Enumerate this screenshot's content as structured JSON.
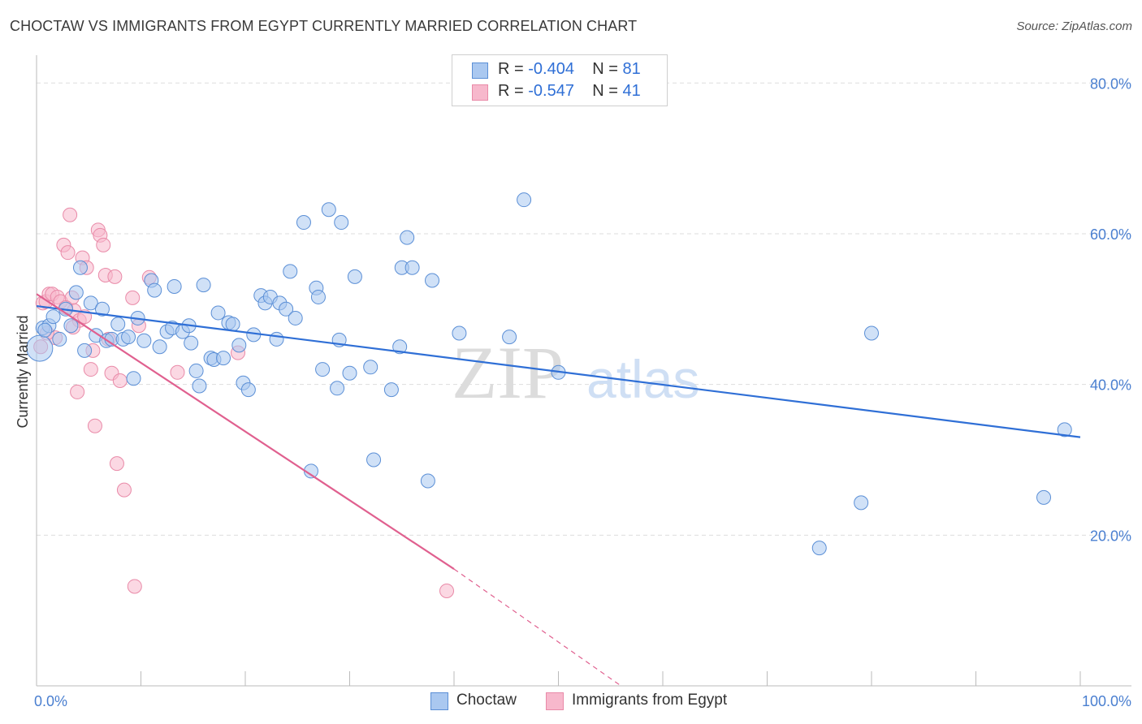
{
  "title": "CHOCTAW VS IMMIGRANTS FROM EGYPT CURRENTLY MARRIED CORRELATION CHART",
  "source": "Source: ZipAtlas.com",
  "watermark": {
    "zip": "ZIP",
    "atlas": "atlas"
  },
  "colors": {
    "choctaw_fill": "#aac8f0",
    "choctaw_stroke": "#5b8fd6",
    "choctaw_line": "#2f6fd6",
    "egypt_fill": "#f7b8cc",
    "egypt_stroke": "#e98aa8",
    "egypt_line": "#e0608f",
    "axis_text": "#4a7fd0",
    "grid": "#dddddd"
  },
  "legend": {
    "rows": [
      {
        "r_label": "R = ",
        "r_value": "-0.404",
        "n_label": "N = ",
        "n_value": "81"
      },
      {
        "r_label": "R = ",
        "r_value": "-0.547",
        "n_label": "N = ",
        "n_value": "41"
      }
    ]
  },
  "chart_data": {
    "type": "scatter",
    "title": "CHOCTAW VS IMMIGRANTS FROM EGYPT CURRENTLY MARRIED CORRELATION CHART",
    "xlabel": "",
    "ylabel": "Currently Married",
    "xlim": [
      0,
      100
    ],
    "ylim": [
      0,
      80
    ],
    "x_tick_labels": [
      "0.0%",
      "100.0%"
    ],
    "y_tick_labels": [
      "20.0%",
      "40.0%",
      "60.0%",
      "80.0%"
    ],
    "y_ticks": [
      20,
      40,
      60,
      80
    ],
    "grid": "horizontal dashed",
    "legend_position": "top-center",
    "series": [
      {
        "name": "Choctaw",
        "r": -0.404,
        "n": 81,
        "trend": {
          "x": [
            0,
            100
          ],
          "y": [
            50.4,
            33.0
          ]
        },
        "points": [
          [
            0.3,
            44.8
          ],
          [
            0.6,
            47.5
          ],
          [
            1.2,
            47.8
          ],
          [
            1.6,
            49.0
          ],
          [
            2.2,
            46.0
          ],
          [
            2.8,
            50.0
          ],
          [
            3.3,
            47.8
          ],
          [
            3.8,
            52.2
          ],
          [
            4.2,
            55.5
          ],
          [
            4.6,
            44.5
          ],
          [
            5.2,
            50.8
          ],
          [
            5.7,
            46.5
          ],
          [
            6.3,
            50.0
          ],
          [
            6.7,
            45.8
          ],
          [
            7.2,
            46.0
          ],
          [
            7.8,
            48.0
          ],
          [
            8.3,
            46.0
          ],
          [
            8.8,
            46.3
          ],
          [
            9.3,
            40.8
          ],
          [
            9.7,
            48.8
          ],
          [
            10.3,
            45.8
          ],
          [
            11.0,
            53.8
          ],
          [
            11.3,
            52.5
          ],
          [
            11.8,
            45.0
          ],
          [
            12.5,
            47.0
          ],
          [
            13.0,
            47.5
          ],
          [
            13.2,
            53.0
          ],
          [
            14.0,
            47.0
          ],
          [
            14.6,
            47.8
          ],
          [
            14.8,
            45.5
          ],
          [
            15.3,
            41.8
          ],
          [
            15.6,
            39.8
          ],
          [
            16.0,
            53.2
          ],
          [
            16.7,
            43.5
          ],
          [
            17.0,
            43.3
          ],
          [
            17.4,
            49.5
          ],
          [
            17.9,
            43.5
          ],
          [
            18.4,
            48.2
          ],
          [
            18.8,
            48.0
          ],
          [
            19.4,
            45.2
          ],
          [
            19.8,
            40.2
          ],
          [
            20.3,
            39.3
          ],
          [
            20.8,
            46.6
          ],
          [
            21.5,
            51.8
          ],
          [
            21.9,
            50.8
          ],
          [
            22.4,
            51.6
          ],
          [
            23.0,
            46.0
          ],
          [
            23.3,
            50.8
          ],
          [
            23.9,
            50.0
          ],
          [
            24.3,
            55.0
          ],
          [
            24.8,
            48.8
          ],
          [
            25.6,
            61.5
          ],
          [
            26.3,
            28.5
          ],
          [
            26.8,
            52.8
          ],
          [
            27.0,
            51.6
          ],
          [
            27.4,
            42.0
          ],
          [
            28.0,
            63.2
          ],
          [
            28.8,
            39.5
          ],
          [
            29.0,
            45.9
          ],
          [
            29.2,
            61.5
          ],
          [
            30.0,
            41.5
          ],
          [
            30.5,
            54.3
          ],
          [
            32.0,
            42.3
          ],
          [
            32.3,
            30.0
          ],
          [
            34.0,
            39.3
          ],
          [
            35.0,
            55.5
          ],
          [
            34.8,
            45.0
          ],
          [
            35.5,
            59.5
          ],
          [
            36.0,
            55.5
          ],
          [
            37.5,
            27.2
          ],
          [
            37.9,
            53.8
          ],
          [
            40.5,
            46.8
          ],
          [
            45.3,
            46.3
          ],
          [
            46.7,
            64.5
          ],
          [
            50.0,
            41.6
          ],
          [
            75.0,
            18.3
          ],
          [
            79.0,
            24.3
          ],
          [
            80.0,
            46.8
          ],
          [
            96.5,
            25.0
          ],
          [
            98.5,
            34.0
          ],
          [
            0.8,
            47.2
          ]
        ]
      },
      {
        "name": "Immigrants from Egypt",
        "r": -0.547,
        "n": 41,
        "trend": {
          "x": [
            0,
            40
          ],
          "y": [
            52.0,
            15.5
          ],
          "dashed_to": {
            "x": 56,
            "y": 0
          }
        },
        "points": [
          [
            0.4,
            45.0
          ],
          [
            0.6,
            50.8
          ],
          [
            0.9,
            51.0
          ],
          [
            1.2,
            52.0
          ],
          [
            1.5,
            52.0
          ],
          [
            1.8,
            46.2
          ],
          [
            2.0,
            51.6
          ],
          [
            2.3,
            51.0
          ],
          [
            2.6,
            58.5
          ],
          [
            3.0,
            57.5
          ],
          [
            3.2,
            62.5
          ],
          [
            3.4,
            51.5
          ],
          [
            3.6,
            49.8
          ],
          [
            3.9,
            39.0
          ],
          [
            4.1,
            48.5
          ],
          [
            4.4,
            56.8
          ],
          [
            4.8,
            55.5
          ],
          [
            5.2,
            42.0
          ],
          [
            5.4,
            44.5
          ],
          [
            5.6,
            34.5
          ],
          [
            5.9,
            60.5
          ],
          [
            6.1,
            59.8
          ],
          [
            6.4,
            58.5
          ],
          [
            6.6,
            54.5
          ],
          [
            6.9,
            46.0
          ],
          [
            7.2,
            41.5
          ],
          [
            7.5,
            54.3
          ],
          [
            7.7,
            29.5
          ],
          [
            8.0,
            40.5
          ],
          [
            8.4,
            26.0
          ],
          [
            9.2,
            51.5
          ],
          [
            9.4,
            13.2
          ],
          [
            9.8,
            47.8
          ],
          [
            10.8,
            54.2
          ],
          [
            13.5,
            41.6
          ],
          [
            19.3,
            44.2
          ],
          [
            39.3,
            12.6
          ],
          [
            1.0,
            46.8
          ],
          [
            2.8,
            50.2
          ],
          [
            4.6,
            49.0
          ],
          [
            3.5,
            47.6
          ]
        ]
      }
    ]
  },
  "bottom_legend": {
    "choctaw": "Choctaw",
    "egypt": "Immigrants from Egypt"
  }
}
